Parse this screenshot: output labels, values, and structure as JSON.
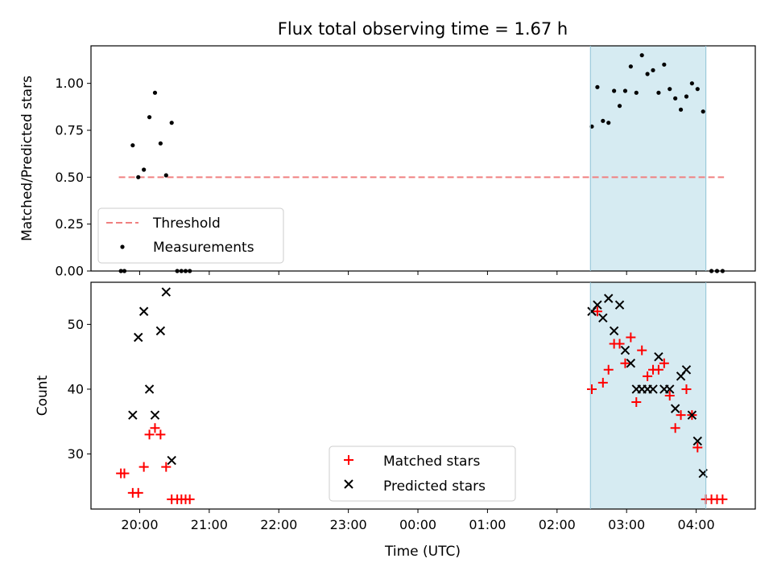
{
  "chart_data": [
    {
      "type": "scatter",
      "title": "Flux total observing time = 1.67 h",
      "xlabel": "",
      "ylabel": "Matched/Predicted stars",
      "x_unit": "hours since 00:00 UTC",
      "xlim": [
        -4.7,
        4.85
      ],
      "ylim": [
        0.0,
        1.2
      ],
      "yticks": [
        0.0,
        0.25,
        0.5,
        0.75,
        1.0
      ],
      "ytick_labels": [
        "0.00",
        "0.25",
        "0.50",
        "0.75",
        "1.00"
      ],
      "shaded_interval": [
        2.48,
        4.14
      ],
      "shade_color": "#add8e6",
      "threshold": {
        "name": "Threshold",
        "value": 0.5,
        "x_range": [
          -4.3,
          4.4
        ],
        "color": "#f08080",
        "style": "dashed"
      },
      "series": [
        {
          "name": "Measurements",
          "marker": "dot",
          "color": "#000000",
          "points": [
            [
              -4.27,
              0.0
            ],
            [
              -4.22,
              0.0
            ],
            [
              -4.1,
              0.67
            ],
            [
              -4.02,
              0.5
            ],
            [
              -3.94,
              0.54
            ],
            [
              -3.86,
              0.82
            ],
            [
              -3.78,
              0.95
            ],
            [
              -3.7,
              0.68
            ],
            [
              -3.62,
              0.51
            ],
            [
              -3.54,
              0.79
            ],
            [
              -3.46,
              0.0
            ],
            [
              -3.4,
              0.0
            ],
            [
              -3.34,
              0.0
            ],
            [
              -3.28,
              0.0
            ],
            [
              2.5,
              0.77
            ],
            [
              2.58,
              0.98
            ],
            [
              2.66,
              0.8
            ],
            [
              2.74,
              0.79
            ],
            [
              2.82,
              0.96
            ],
            [
              2.9,
              0.88
            ],
            [
              2.98,
              0.96
            ],
            [
              3.06,
              1.09
            ],
            [
              3.14,
              0.95
            ],
            [
              3.22,
              1.15
            ],
            [
              3.3,
              1.05
            ],
            [
              3.38,
              1.07
            ],
            [
              3.46,
              0.95
            ],
            [
              3.54,
              1.1
            ],
            [
              3.62,
              0.97
            ],
            [
              3.7,
              0.92
            ],
            [
              3.78,
              0.86
            ],
            [
              3.86,
              0.93
            ],
            [
              3.94,
              1.0
            ],
            [
              4.02,
              0.97
            ],
            [
              4.1,
              0.85
            ],
            [
              4.22,
              0.0
            ],
            [
              4.3,
              0.0
            ],
            [
              4.38,
              0.0
            ]
          ]
        }
      ],
      "legend": {
        "position": "lower-left",
        "entries": [
          "Threshold",
          "Measurements"
        ]
      }
    },
    {
      "type": "scatter",
      "title": "",
      "xlabel": "Time (UTC)",
      "ylabel": "Count",
      "x_unit": "hours since 00:00 UTC",
      "xlim": [
        -4.7,
        4.85
      ],
      "ylim": [
        21.5,
        56.5
      ],
      "yticks": [
        30,
        40,
        50
      ],
      "ytick_labels": [
        "30",
        "40",
        "50"
      ],
      "xticks": [
        -4,
        -3,
        -2,
        -1,
        0,
        1,
        2,
        3,
        4
      ],
      "xtick_labels": [
        "20:00",
        "21:00",
        "22:00",
        "23:00",
        "00:00",
        "01:00",
        "02:00",
        "03:00",
        "04:00"
      ],
      "shaded_interval": [
        2.48,
        4.14
      ],
      "shade_color": "#add8e6",
      "series": [
        {
          "name": "Matched stars",
          "marker": "plus",
          "color": "#ff0000",
          "points": [
            [
              -4.27,
              27
            ],
            [
              -4.22,
              27
            ],
            [
              -4.1,
              24
            ],
            [
              -4.02,
              24
            ],
            [
              -3.94,
              28
            ],
            [
              -3.86,
              33
            ],
            [
              -3.78,
              34
            ],
            [
              -3.7,
              33
            ],
            [
              -3.62,
              28
            ],
            [
              -3.54,
              23
            ],
            [
              -3.46,
              23
            ],
            [
              -3.4,
              23
            ],
            [
              -3.34,
              23
            ],
            [
              -3.28,
              23
            ],
            [
              2.5,
              40
            ],
            [
              2.58,
              52
            ],
            [
              2.66,
              41
            ],
            [
              2.74,
              43
            ],
            [
              2.82,
              47
            ],
            [
              2.9,
              47
            ],
            [
              2.98,
              44
            ],
            [
              3.06,
              48
            ],
            [
              3.14,
              38
            ],
            [
              3.22,
              46
            ],
            [
              3.3,
              42
            ],
            [
              3.38,
              43
            ],
            [
              3.46,
              43
            ],
            [
              3.54,
              44
            ],
            [
              3.62,
              39
            ],
            [
              3.7,
              34
            ],
            [
              3.78,
              36
            ],
            [
              3.86,
              40
            ],
            [
              3.94,
              36
            ],
            [
              4.02,
              31
            ],
            [
              4.14,
              23
            ],
            [
              4.22,
              23
            ],
            [
              4.3,
              23
            ],
            [
              4.38,
              23
            ]
          ]
        },
        {
          "name": "Predicted stars",
          "marker": "x",
          "color": "#000000",
          "points": [
            [
              -4.1,
              36
            ],
            [
              -4.02,
              48
            ],
            [
              -3.94,
              52
            ],
            [
              -3.86,
              40
            ],
            [
              -3.78,
              36
            ],
            [
              -3.7,
              49
            ],
            [
              -3.62,
              55
            ],
            [
              -3.54,
              29
            ],
            [
              2.5,
              52
            ],
            [
              2.58,
              53
            ],
            [
              2.66,
              51
            ],
            [
              2.74,
              54
            ],
            [
              2.82,
              49
            ],
            [
              2.9,
              53
            ],
            [
              2.98,
              46
            ],
            [
              3.06,
              44
            ],
            [
              3.14,
              40
            ],
            [
              3.22,
              40
            ],
            [
              3.3,
              40
            ],
            [
              3.38,
              40
            ],
            [
              3.46,
              45
            ],
            [
              3.54,
              40
            ],
            [
              3.62,
              40
            ],
            [
              3.7,
              37
            ],
            [
              3.78,
              42
            ],
            [
              3.86,
              43
            ],
            [
              3.94,
              36
            ],
            [
              4.02,
              32
            ],
            [
              4.1,
              27
            ]
          ]
        }
      ],
      "legend": {
        "position": "lower-center",
        "entries": [
          "Matched stars",
          "Predicted stars"
        ]
      }
    }
  ]
}
